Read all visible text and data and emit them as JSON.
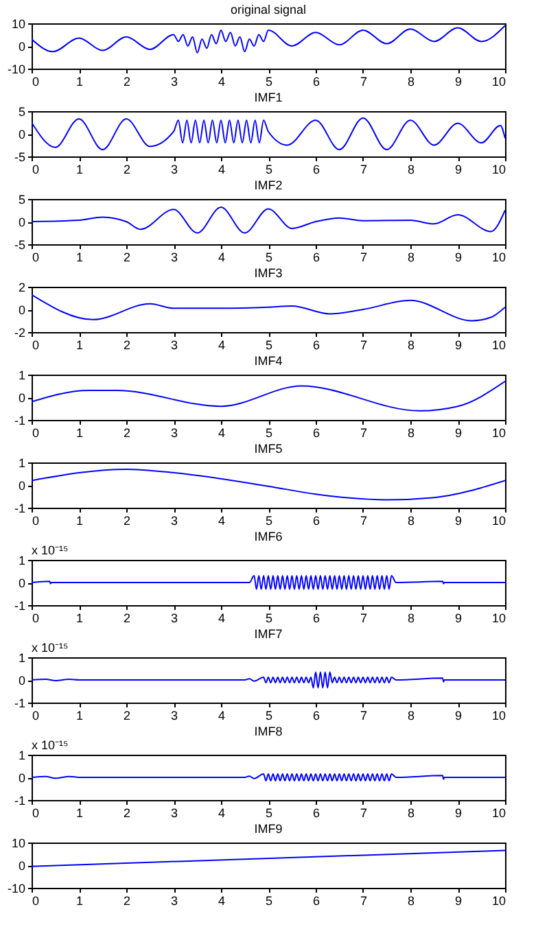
{
  "chart_data": [
    {
      "type": "line",
      "title": "original signal",
      "x": [
        0,
        0.45,
        1,
        1.5,
        2,
        2.5,
        3,
        3.1,
        3.2,
        3.3,
        3.4,
        3.5,
        3.6,
        3.7,
        3.8,
        3.9,
        4,
        4.1,
        4.2,
        4.3,
        4.4,
        4.5,
        4.6,
        4.7,
        4.8,
        4.9,
        5,
        5.5,
        6,
        6.5,
        7,
        7.5,
        8,
        8.5,
        9,
        9.5,
        10
      ],
      "series": [
        {
          "color": "#0000ff",
          "values": [
            3,
            -2.5,
            3.5,
            -2,
            4,
            -1.5,
            5,
            2,
            5,
            0,
            4,
            -3,
            3,
            -1,
            5,
            1,
            7,
            2,
            6,
            0,
            4,
            -2.5,
            3,
            0,
            5,
            2,
            7,
            0,
            6,
            0.5,
            7,
            1,
            7.5,
            2,
            8,
            2,
            9
          ]
        }
      ],
      "xlim": [
        0,
        10
      ],
      "xticks": [
        0,
        1,
        2,
        3,
        4,
        5,
        6,
        7,
        8,
        9,
        10
      ],
      "ylim": [
        -10,
        10
      ],
      "yticks": [
        -10,
        0,
        10
      ],
      "grid": false
    },
    {
      "type": "line",
      "title": "IMF1",
      "x": [
        0,
        0.5,
        1,
        1.5,
        2,
        2.5,
        3,
        3.1,
        3.19,
        3.28,
        3.37,
        3.46,
        3.55,
        3.64,
        3.73,
        3.82,
        3.91,
        4,
        4.09,
        4.18,
        4.27,
        4.36,
        4.45,
        4.54,
        4.63,
        4.72,
        4.81,
        4.9,
        5,
        5.4,
        6,
        6.5,
        7,
        7.5,
        8,
        8.5,
        9,
        9.5,
        9.9,
        10
      ],
      "series": [
        {
          "color": "#0000ff",
          "values": [
            2.5,
            -3,
            3.3,
            -3.5,
            3.3,
            -2.8,
            0.5,
            3,
            -2,
            3,
            -2,
            3,
            -2,
            3,
            -2,
            3,
            -2,
            3,
            -2,
            3,
            -2,
            3,
            -2,
            3,
            -2,
            3,
            -2,
            3,
            0.5,
            -2.5,
            3,
            -3.5,
            3.5,
            -3.5,
            3,
            -2.5,
            2.3,
            -2,
            1.8,
            -1
          ]
        }
      ],
      "xlim": [
        0,
        10
      ],
      "xticks": [
        0,
        1,
        2,
        3,
        4,
        5,
        6,
        7,
        8,
        9,
        10
      ],
      "ylim": [
        -5,
        5
      ],
      "yticks": [
        -5,
        0,
        5
      ],
      "grid": false
    },
    {
      "type": "line",
      "title": "IMF2",
      "x": [
        0,
        1,
        1.5,
        2,
        2.3,
        3,
        3.5,
        4,
        4.5,
        5,
        5.5,
        6,
        6.5,
        7,
        8,
        8.5,
        9,
        9.7,
        10
      ],
      "series": [
        {
          "color": "#0000ff",
          "values": [
            0,
            0.3,
            1,
            0,
            -1.7,
            2.7,
            -2.5,
            3.2,
            -2.5,
            2.8,
            -1.5,
            0,
            0.8,
            0.2,
            0.3,
            -0.5,
            1.5,
            -2.2,
            2.5
          ]
        }
      ],
      "xlim": [
        0,
        10
      ],
      "xticks": [
        0,
        1,
        2,
        3,
        4,
        5,
        6,
        7,
        8,
        9,
        10
      ],
      "ylim": [
        -5,
        5
      ],
      "yticks": [
        -5,
        0,
        5
      ],
      "grid": false
    },
    {
      "type": "line",
      "title": "IMF3",
      "x": [
        0,
        1.3,
        2.5,
        3,
        4,
        5,
        5.5,
        6.3,
        7,
        8,
        9.3,
        9.7,
        10
      ],
      "series": [
        {
          "color": "#0000ff",
          "values": [
            1.3,
            -0.9,
            0.5,
            0.1,
            0.1,
            0.2,
            0.3,
            -0.4,
            0,
            0.8,
            -1,
            -0.7,
            0.2
          ]
        }
      ],
      "xlim": [
        0,
        10
      ],
      "xticks": [
        0,
        1,
        2,
        3,
        4,
        5,
        6,
        7,
        8,
        9,
        10
      ],
      "ylim": [
        -2,
        2
      ],
      "yticks": [
        -2,
        0,
        2
      ],
      "grid": false
    },
    {
      "type": "line",
      "title": "IMF4",
      "x": [
        0,
        1.2,
        1.8,
        4,
        5.7,
        8.2,
        9,
        10
      ],
      "series": [
        {
          "color": "#0000ff",
          "values": [
            -0.2,
            0.3,
            0.3,
            -0.4,
            0.5,
            -0.6,
            -0.4,
            0.7
          ]
        }
      ],
      "xlim": [
        0,
        10
      ],
      "xticks": [
        0,
        1,
        2,
        3,
        4,
        5,
        6,
        7,
        8,
        9,
        10
      ],
      "ylim": [
        -1,
        1
      ],
      "yticks": [
        -1,
        0,
        1
      ],
      "grid": false
    },
    {
      "type": "line",
      "title": "IMF5",
      "x": [
        0,
        2,
        3,
        5,
        6,
        7.5,
        8.5,
        10
      ],
      "series": [
        {
          "color": "#0000ff",
          "values": [
            0.2,
            0.7,
            0.55,
            -0.05,
            -0.4,
            -0.65,
            -0.55,
            0.2
          ]
        }
      ],
      "xlim": [
        0,
        10
      ],
      "xticks": [
        0,
        1,
        2,
        3,
        4,
        5,
        6,
        7,
        8,
        9,
        10
      ],
      "ylim": [
        -1,
        1
      ],
      "yticks": [
        -1,
        0,
        1
      ],
      "grid": false
    },
    {
      "type": "line",
      "title": "IMF6",
      "annotations": [
        "x 10⁻¹⁵"
      ],
      "x": [
        0,
        0.38,
        0.4,
        0.42,
        4.6,
        4.7,
        4.75,
        4.8,
        4.85,
        4.9,
        4.95,
        5,
        5.05,
        5.1,
        5.15,
        5.2,
        5.25,
        5.3,
        5.35,
        5.4,
        5.45,
        5.5,
        5.55,
        5.6,
        5.65,
        5.7,
        5.75,
        5.8,
        5.85,
        5.9,
        5.95,
        6,
        6.05,
        6.1,
        6.15,
        6.2,
        6.25,
        6.3,
        6.35,
        6.4,
        6.45,
        6.5,
        6.55,
        6.6,
        6.65,
        6.7,
        6.75,
        6.8,
        6.85,
        6.9,
        6.95,
        7,
        7.05,
        7.1,
        7.15,
        7.2,
        7.25,
        7.3,
        7.35,
        7.4,
        7.45,
        7.5,
        7.55,
        7.6,
        7.7,
        8.68,
        8.7,
        8.72,
        10
      ],
      "series": [
        {
          "color": "#0000ff",
          "values": [
            0,
            0.05,
            -0.05,
            0,
            0,
            0.3,
            -0.3,
            0.3,
            -0.3,
            0.3,
            -0.3,
            0.3,
            -0.3,
            0.3,
            -0.3,
            0.3,
            -0.3,
            0.3,
            -0.3,
            0.3,
            -0.3,
            0.3,
            -0.3,
            0.3,
            -0.3,
            0.3,
            -0.3,
            0.3,
            -0.3,
            0.3,
            -0.3,
            0.3,
            -0.3,
            0.3,
            -0.3,
            0.3,
            -0.3,
            0.3,
            -0.3,
            0.3,
            -0.3,
            0.3,
            -0.3,
            0.3,
            -0.3,
            0.3,
            -0.3,
            0.3,
            -0.3,
            0.3,
            -0.3,
            0.3,
            -0.3,
            0.3,
            -0.3,
            0.3,
            -0.3,
            0.3,
            -0.3,
            0.3,
            -0.3,
            0.3,
            -0.3,
            0.3,
            0,
            0.05,
            -0.05,
            0,
            0
          ]
        }
      ],
      "xlim": [
        0,
        10
      ],
      "xticks": [
        0,
        1,
        2,
        3,
        4,
        5,
        6,
        7,
        8,
        9,
        10
      ],
      "ylim": [
        -1,
        1
      ],
      "yticks": [
        -1,
        0,
        1
      ],
      "grid": false
    },
    {
      "type": "line",
      "title": "IMF7",
      "annotations": [
        "x 10⁻¹⁵"
      ],
      "x": [
        0,
        0.3,
        0.5,
        0.8,
        1,
        4.5,
        4.6,
        4.7,
        4.9,
        4.95,
        5,
        5.05,
        5.1,
        5.15,
        5.2,
        5.25,
        5.3,
        5.35,
        5.4,
        5.45,
        5.5,
        5.55,
        5.6,
        5.65,
        5.7,
        5.75,
        5.8,
        5.85,
        5.9,
        5.95,
        6,
        6.05,
        6.1,
        6.15,
        6.2,
        6.25,
        6.3,
        6.35,
        6.4,
        6.45,
        6.5,
        6.55,
        6.6,
        6.65,
        6.7,
        6.75,
        6.8,
        6.85,
        6.9,
        6.95,
        7,
        7.05,
        7.1,
        7.15,
        7.2,
        7.25,
        7.3,
        7.35,
        7.4,
        7.45,
        7.5,
        7.55,
        7.6,
        7.7,
        8.68,
        8.7,
        8.72,
        10
      ],
      "series": [
        {
          "color": "#0000ff",
          "values": [
            0,
            0.03,
            -0.03,
            0.03,
            0,
            0,
            0.05,
            -0.05,
            0.12,
            -0.12,
            0.12,
            -0.12,
            0.12,
            -0.12,
            0.12,
            -0.12,
            0.12,
            -0.12,
            0.12,
            -0.12,
            0.12,
            -0.12,
            0.12,
            -0.12,
            0.12,
            -0.12,
            0.12,
            -0.12,
            0.12,
            -0.35,
            0.35,
            -0.35,
            0.35,
            -0.35,
            0.35,
            -0.35,
            0.35,
            -0.12,
            0.12,
            -0.12,
            0.12,
            -0.12,
            0.12,
            -0.12,
            0.12,
            -0.12,
            0.12,
            -0.12,
            0.12,
            -0.12,
            0.12,
            -0.12,
            0.12,
            -0.12,
            0.12,
            -0.12,
            0.12,
            -0.12,
            0.12,
            -0.12,
            0.12,
            -0.12,
            0.12,
            0,
            0.08,
            -0.08,
            0,
            0
          ]
        }
      ],
      "xlim": [
        0,
        10
      ],
      "xticks": [
        0,
        1,
        2,
        3,
        4,
        5,
        6,
        7,
        8,
        9,
        10
      ],
      "ylim": [
        -1,
        1
      ],
      "yticks": [
        -1,
        0,
        1
      ],
      "grid": false
    },
    {
      "type": "line",
      "title": "IMF8",
      "annotations": [
        "x 10⁻¹⁵"
      ],
      "x": [
        0,
        0.3,
        0.5,
        0.8,
        1,
        4.5,
        4.6,
        4.7,
        4.9,
        4.95,
        5,
        5.05,
        5.1,
        5.15,
        5.2,
        5.25,
        5.3,
        5.35,
        5.4,
        5.45,
        5.5,
        5.55,
        5.6,
        5.65,
        5.7,
        5.75,
        5.8,
        5.85,
        5.9,
        5.95,
        6,
        6.05,
        6.1,
        6.15,
        6.2,
        6.25,
        6.3,
        6.35,
        6.4,
        6.45,
        6.5,
        6.55,
        6.6,
        6.65,
        6.7,
        6.75,
        6.8,
        6.85,
        6.9,
        6.95,
        7,
        7.05,
        7.1,
        7.15,
        7.2,
        7.25,
        7.3,
        7.35,
        7.4,
        7.45,
        7.5,
        7.55,
        7.6,
        7.7,
        8.68,
        8.7,
        8.72,
        10
      ],
      "series": [
        {
          "color": "#0000ff",
          "values": [
            0,
            0.04,
            -0.04,
            0.04,
            0,
            0,
            0.05,
            -0.05,
            0.15,
            -0.15,
            0.15,
            -0.15,
            0.15,
            -0.15,
            0.15,
            -0.15,
            0.15,
            -0.15,
            0.15,
            -0.15,
            0.15,
            -0.15,
            0.15,
            -0.15,
            0.15,
            -0.15,
            0.15,
            -0.15,
            0.15,
            -0.15,
            0.15,
            -0.15,
            0.15,
            -0.15,
            0.15,
            -0.15,
            0.15,
            -0.15,
            0.15,
            -0.15,
            0.15,
            -0.15,
            0.15,
            -0.15,
            0.15,
            -0.15,
            0.15,
            -0.15,
            0.15,
            -0.15,
            0.15,
            -0.15,
            0.15,
            -0.15,
            0.15,
            -0.15,
            0.15,
            -0.15,
            0.15,
            -0.15,
            0.15,
            -0.15,
            0.15,
            0,
            0.08,
            -0.08,
            0,
            0
          ]
        }
      ],
      "xlim": [
        0,
        10
      ],
      "xticks": [
        0,
        1,
        2,
        3,
        4,
        5,
        6,
        7,
        8,
        9,
        10
      ],
      "ylim": [
        -1,
        1
      ],
      "yticks": [
        -1,
        0,
        1
      ],
      "grid": false
    },
    {
      "type": "line",
      "title": "IMF9",
      "x": [
        0,
        10
      ],
      "series": [
        {
          "color": "#0000ff",
          "values": [
            -0.5,
            6.5
          ]
        }
      ],
      "xlim": [
        0,
        10
      ],
      "xticks": [
        0,
        1,
        2,
        3,
        4,
        5,
        6,
        7,
        8,
        9,
        10
      ],
      "ylim": [
        -10,
        10
      ],
      "yticks": [
        -10,
        0,
        10
      ],
      "grid": false
    }
  ]
}
